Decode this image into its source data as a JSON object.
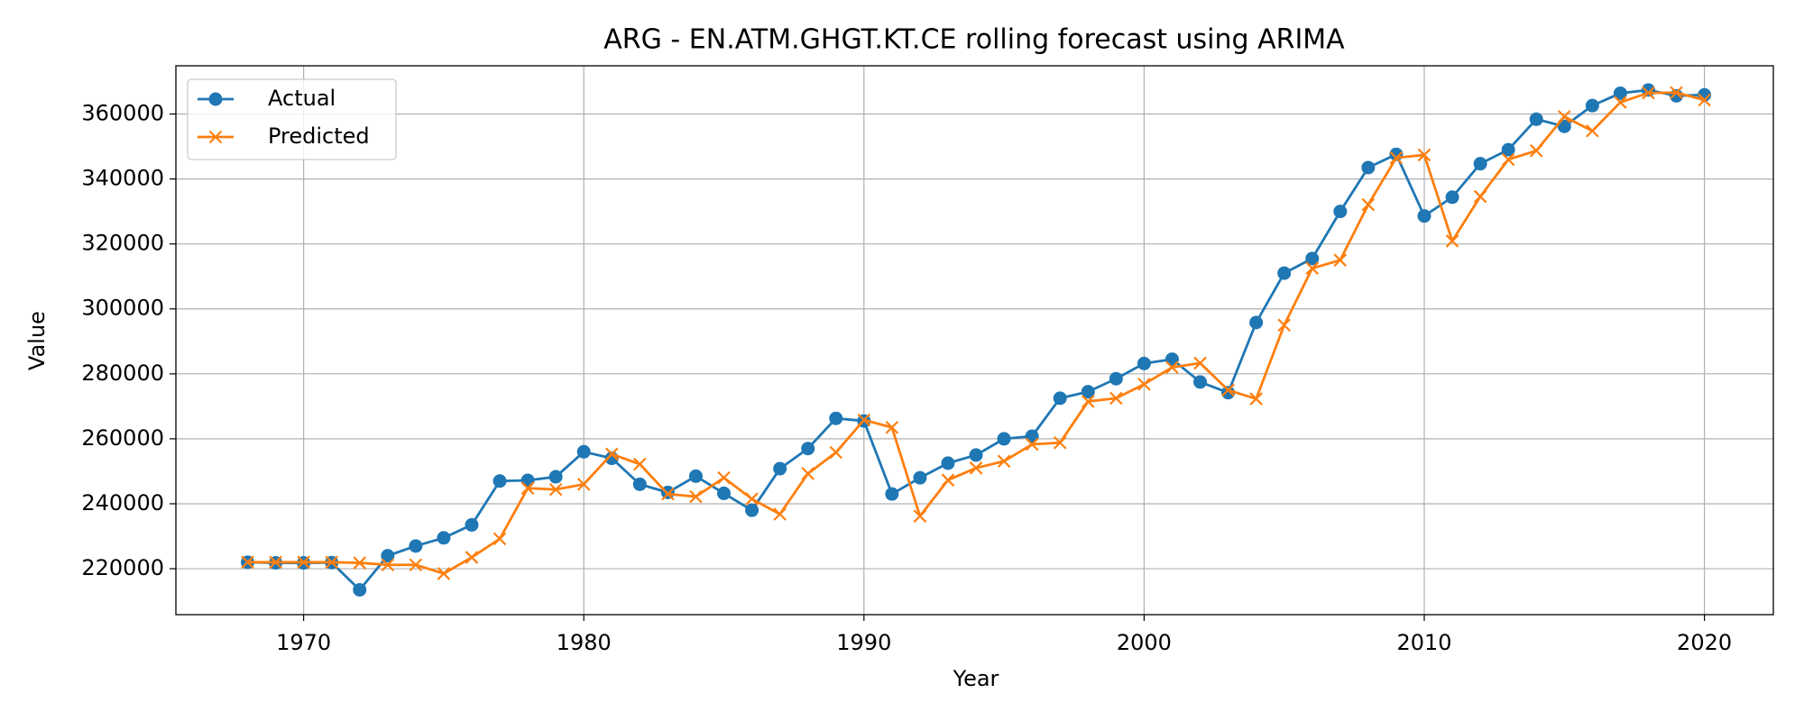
{
  "chart_data": {
    "type": "line",
    "title": "ARG - EN.ATM.GHGT.KT.CE rolling forecast using ARIMA",
    "x_label": "Year",
    "y_label": "Value",
    "x": [
      1968,
      1969,
      1970,
      1971,
      1972,
      1973,
      1974,
      1975,
      1976,
      1977,
      1978,
      1979,
      1980,
      1981,
      1982,
      1983,
      1984,
      1985,
      1986,
      1987,
      1988,
      1989,
      1990,
      1991,
      1992,
      1993,
      1994,
      1995,
      1996,
      1997,
      1998,
      1999,
      2000,
      2001,
      2002,
      2003,
      2004,
      2005,
      2006,
      2007,
      2008,
      2009,
      2010,
      2011,
      2012,
      2013,
      2014,
      2015,
      2016,
      2017,
      2018,
      2019,
      2020
    ],
    "series": [
      {
        "name": "Actual",
        "color": "#1f77b4",
        "marker": "circle",
        "values": [
          222000,
          221800,
          221800,
          221900,
          213500,
          224000,
          227000,
          229500,
          233500,
          247000,
          247200,
          248300,
          256000,
          254000,
          246000,
          243500,
          248500,
          243200,
          238000,
          250800,
          257000,
          266300,
          265500,
          243000,
          248000,
          252500,
          255000,
          260000,
          260800,
          272500,
          274500,
          278500,
          283200,
          284500,
          277500,
          274200,
          295800,
          311000,
          315500,
          330000,
          343500,
          347600,
          328600,
          334400,
          344700,
          349000,
          358400,
          356200,
          362600,
          366400,
          367400,
          365600,
          365900
        ]
      },
      {
        "name": "Predicted",
        "color": "#ff7f0e",
        "marker": "x",
        "values": [
          222000,
          222000,
          222000,
          222000,
          221800,
          221200,
          221200,
          218500,
          223500,
          229200,
          244800,
          244400,
          246000,
          255300,
          252200,
          243000,
          242200,
          248000,
          241500,
          236800,
          249300,
          255800,
          265800,
          263500,
          236200,
          247300,
          251000,
          253100,
          258300,
          258800,
          271500,
          272500,
          276800,
          282000,
          283300,
          275000,
          272300,
          295000,
          312500,
          315000,
          332100,
          346500,
          347400,
          320900,
          334600,
          346000,
          348700,
          359200,
          354800,
          363600,
          366500,
          366600,
          364300
        ]
      }
    ],
    "xlim": [
      1965.44,
      2022.46
    ],
    "xticks": [
      1970,
      1980,
      1990,
      2000,
      2010,
      2020
    ],
    "ylim": [
      205860,
      374850
    ],
    "yticks": [
      220000,
      240000,
      260000,
      280000,
      300000,
      320000,
      340000,
      360000
    ],
    "grid": true,
    "legend": "upper left"
  }
}
